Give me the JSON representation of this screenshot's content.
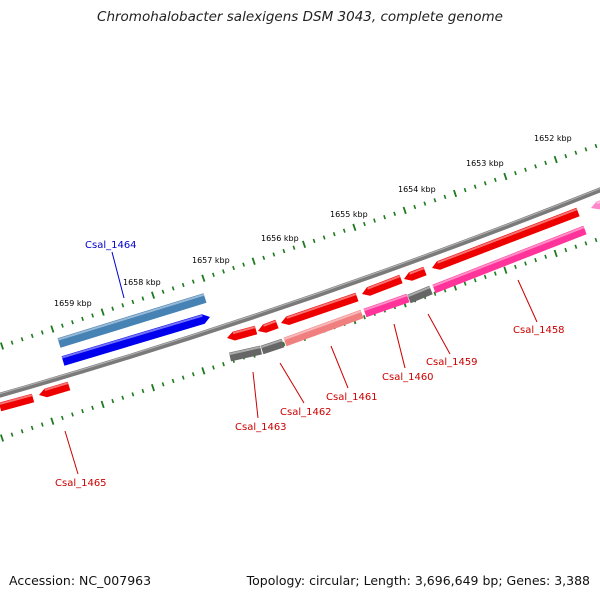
{
  "title": "Chromohalobacter salexigens DSM 3043, complete genome",
  "footer": {
    "accession": "Accession: NC_007963",
    "summary": "Topology: circular; Length: 3,696,649 bp; Genes: 3,388"
  },
  "kbp_labels": [
    "1652 kbp",
    "1653 kbp",
    "1654 kbp",
    "1655 kbp",
    "1656 kbp",
    "1657 kbp",
    "1658 kbp",
    "1659 kbp"
  ],
  "gene_labels": {
    "csal_1458": "Csal_1458",
    "csal_1459": "Csal_1459",
    "csal_1460": "Csal_1460",
    "csal_1461": "Csal_1461",
    "csal_1462": "Csal_1462",
    "csal_1463": "Csal_1463",
    "csal_1464": "Csal_1464",
    "csal_1465": "Csal_1465"
  },
  "colors": {
    "backbone": "#808080",
    "tick": "#1e7a1e",
    "gene_red": "#ee0000",
    "gene_pink": "#ff3399",
    "gene_salmon": "#f08080",
    "gene_gray": "#666666",
    "gene_steel": "#4682b4",
    "gene_blue": "#0000ee",
    "label_red": "#cc0000",
    "label_blue": "#0000cc"
  }
}
